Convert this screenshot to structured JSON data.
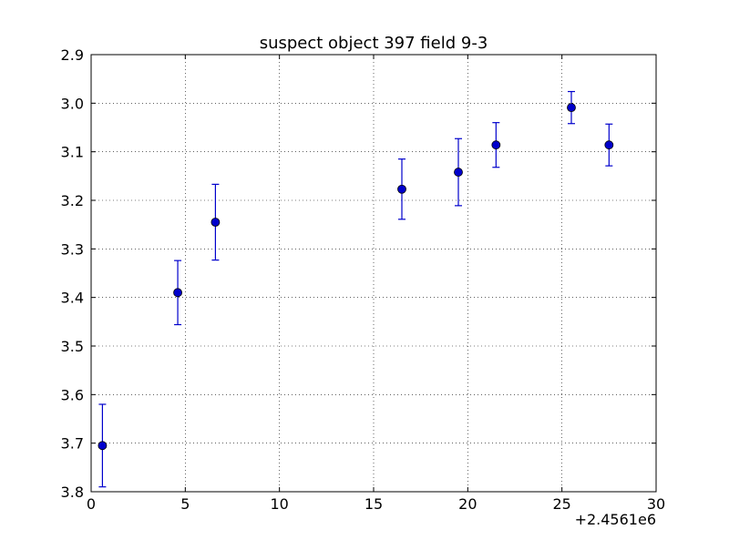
{
  "chart_data": {
    "type": "scatter",
    "title": "suspect object 397 field 9-3",
    "xlabel": "",
    "ylabel": "",
    "x_offset_label": "+2.4561e6",
    "xlim": [
      0,
      30
    ],
    "ylim": [
      2.9,
      3.8
    ],
    "y_inverted": true,
    "grid": true,
    "x_ticks": [
      0,
      5,
      10,
      15,
      20,
      25,
      30
    ],
    "x_tick_labels": [
      "0",
      "5",
      "10",
      "15",
      "20",
      "25",
      "30"
    ],
    "y_ticks": [
      2.9,
      3.0,
      3.1,
      3.2,
      3.3,
      3.4,
      3.5,
      3.6,
      3.7,
      3.8
    ],
    "y_tick_labels": [
      "2.9",
      "3.0",
      "3.1",
      "3.2",
      "3.3",
      "3.4",
      "3.5",
      "3.6",
      "3.7",
      "3.8"
    ],
    "marker_color": "#0000cc",
    "series": [
      {
        "x": [
          0.6,
          4.6,
          6.6,
          16.5,
          19.5,
          21.5,
          25.5,
          27.5
        ],
        "y": [
          3.705,
          3.39,
          3.245,
          3.177,
          3.142,
          3.086,
          3.009,
          3.086
        ],
        "yerr": [
          0.085,
          0.066,
          0.078,
          0.062,
          0.069,
          0.046,
          0.033,
          0.043
        ]
      }
    ]
  }
}
